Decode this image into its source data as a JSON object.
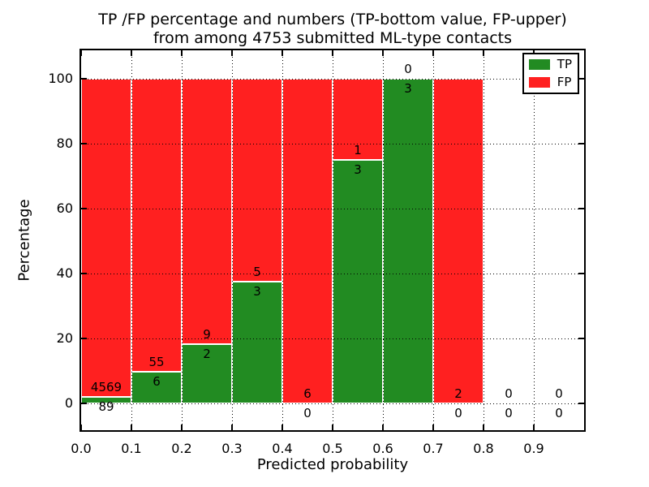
{
  "title": {
    "line1": "TP /FP percentage and numbers (TP-bottom value, FP-upper)",
    "line2": "from among 4753 submitted ML-type contacts"
  },
  "chart_data": {
    "type": "bar",
    "stacked": true,
    "percentage_scale": true,
    "title": "TP /FP percentage and numbers (TP-bottom value, FP-upper)\nfrom among 4753 submitted ML-type contacts",
    "xlabel": "Predicted probability",
    "ylabel": "Percentage",
    "total_contacts": 4753,
    "xticks": [
      "0.0",
      "0.1",
      "0.2",
      "0.3",
      "0.4",
      "0.5",
      "0.6",
      "0.7",
      "0.8",
      "0.9"
    ],
    "yticks": [
      0,
      20,
      40,
      60,
      80,
      100
    ],
    "ylim": [
      -8.25,
      108.75
    ],
    "xlim": [
      0.0,
      1.0
    ],
    "grid": true,
    "legend_position": "upper right",
    "bins": [
      {
        "x0": "0.0",
        "x1": "0.1",
        "tp": 89,
        "fp": 4569,
        "tp_pct": 1.91
      },
      {
        "x0": "0.1",
        "x1": "0.2",
        "tp": 6,
        "fp": 55,
        "tp_pct": 9.84
      },
      {
        "x0": "0.2",
        "x1": "0.3",
        "tp": 2,
        "fp": 9,
        "tp_pct": 18.18
      },
      {
        "x0": "0.3",
        "x1": "0.4",
        "tp": 3,
        "fp": 5,
        "tp_pct": 37.5
      },
      {
        "x0": "0.4",
        "x1": "0.5",
        "tp": 0,
        "fp": 6,
        "tp_pct": 0
      },
      {
        "x0": "0.5",
        "x1": "0.6",
        "tp": 3,
        "fp": 1,
        "tp_pct": 75
      },
      {
        "x0": "0.6",
        "x1": "0.7",
        "tp": 3,
        "fp": 0,
        "tp_pct": 100
      },
      {
        "x0": "0.7",
        "x1": "0.8",
        "tp": 0,
        "fp": 2,
        "tp_pct": 0
      },
      {
        "x0": "0.8",
        "x1": "0.9",
        "tp": 0,
        "fp": 0,
        "tp_pct": null
      },
      {
        "x0": "0.9",
        "x1": "1.0",
        "tp": 0,
        "fp": 0,
        "tp_pct": null
      }
    ],
    "legend": [
      {
        "label": "TP",
        "color": "#228b22"
      },
      {
        "label": "FP",
        "color": "#ff2020"
      }
    ],
    "colors": {
      "tp": "#228b22",
      "fp": "#ff2020",
      "bar_edge": "#ffffff",
      "grid": "#000000"
    }
  }
}
